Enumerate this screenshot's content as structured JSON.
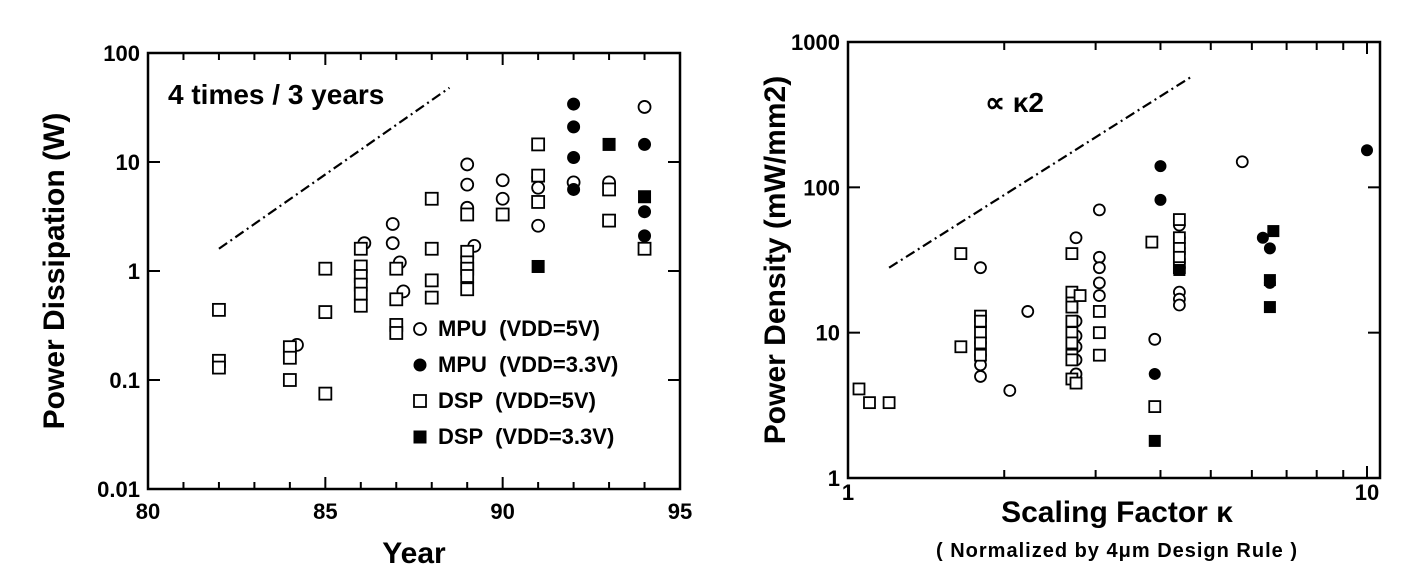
{
  "chart_data": [
    {
      "type": "scatter",
      "xlabel": "Year",
      "ylabel": "Power Dissipation (W)",
      "xlim": [
        80,
        95
      ],
      "ylim": [
        0.01,
        100
      ],
      "yscale": "log",
      "x_ticks": [
        "80",
        "85",
        "90",
        "95"
      ],
      "y_ticks": [
        "0.01",
        "0.1",
        "1",
        "10",
        "100"
      ],
      "annotation": "4 times / 3 years",
      "trend_line": {
        "style": "dash-dot",
        "x": [
          82,
          88.5
        ],
        "y": [
          1.6,
          48
        ]
      },
      "legend_position": "bottom-right",
      "series": [
        {
          "name": "MPU  (VDD=5V)",
          "marker": "open-circle",
          "points": [
            [
              84.2,
              0.21
            ],
            [
              84,
              0.19
            ],
            [
              86.1,
              1.8
            ],
            [
              86.9,
              2.7
            ],
            [
              86.9,
              1.8
            ],
            [
              87.1,
              1.2
            ],
            [
              87.2,
              0.65
            ],
            [
              89,
              9.5
            ],
            [
              89,
              6.2
            ],
            [
              89,
              3.8
            ],
            [
              89.2,
              1.7
            ],
            [
              90,
              6.8
            ],
            [
              90,
              4.6
            ],
            [
              91,
              7.2
            ],
            [
              91,
              5.8
            ],
            [
              91,
              2.6
            ],
            [
              92,
              6.5
            ],
            [
              93,
              6.5
            ],
            [
              94,
              32
            ]
          ]
        },
        {
          "name": "MPU  (VDD=3.3V)",
          "marker": "filled-circle",
          "points": [
            [
              92,
              34
            ],
            [
              92,
              21
            ],
            [
              92,
              11
            ],
            [
              92,
              5.6
            ],
            [
              94,
              14.5
            ],
            [
              94,
              3.5
            ],
            [
              94,
              2.1
            ]
          ]
        },
        {
          "name": "DSP  (VDD=5V)",
          "marker": "open-square",
          "points": [
            [
              82,
              0.44
            ],
            [
              82,
              0.15
            ],
            [
              82,
              0.13
            ],
            [
              84,
              0.2
            ],
            [
              84,
              0.16
            ],
            [
              84,
              0.1
            ],
            [
              85,
              1.05
            ],
            [
              85,
              0.42
            ],
            [
              85,
              0.075
            ],
            [
              86,
              1.6
            ],
            [
              86,
              1.1
            ],
            [
              86,
              0.9
            ],
            [
              86,
              0.75
            ],
            [
              86,
              0.62
            ],
            [
              86,
              0.48
            ],
            [
              87,
              1.05
            ],
            [
              87,
              0.55
            ],
            [
              87,
              0.32
            ],
            [
              87,
              0.27
            ],
            [
              88,
              4.6
            ],
            [
              88,
              1.6
            ],
            [
              88,
              0.82
            ],
            [
              88,
              0.57
            ],
            [
              89,
              3.3
            ],
            [
              89,
              1.5
            ],
            [
              89,
              1.2
            ],
            [
              89,
              1.05
            ],
            [
              89,
              0.9
            ],
            [
              89,
              0.68
            ],
            [
              90,
              3.3
            ],
            [
              91,
              14.5
            ],
            [
              91,
              7.5
            ],
            [
              91,
              4.3
            ],
            [
              93,
              5.6
            ],
            [
              93,
              2.9
            ],
            [
              94,
              1.6
            ]
          ]
        },
        {
          "name": "DSP  (VDD=3.3V)",
          "marker": "filled-square",
          "points": [
            [
              91,
              1.1
            ],
            [
              93,
              14.5
            ],
            [
              94,
              4.8
            ]
          ]
        }
      ]
    },
    {
      "type": "scatter",
      "xlabel": "Scaling Factor κ",
      "xlabel_note": "( Normalized by 4μm Design Rule )",
      "ylabel": "Power Density (mW/mm2)",
      "xlim": [
        1,
        10
      ],
      "ylim": [
        1,
        1000
      ],
      "xscale": "log",
      "yscale": "log",
      "x_ticks": [
        "1",
        "10"
      ],
      "y_ticks": [
        "1",
        "10",
        "100",
        "1000"
      ],
      "annotation": "∝ κ2",
      "trend_line": {
        "style": "dash-dot",
        "x": [
          1.2,
          4.6
        ],
        "y": [
          28,
          580
        ]
      },
      "series": [
        {
          "name": "MPU (VDD=5V)",
          "marker": "open-circle",
          "points": [
            [
              1.8,
              28
            ],
            [
              1.8,
              11
            ],
            [
              1.8,
              8.5
            ],
            [
              1.8,
              7
            ],
            [
              1.8,
              6
            ],
            [
              1.8,
              5
            ],
            [
              2.05,
              4
            ],
            [
              2.22,
              14
            ],
            [
              2.75,
              45
            ],
            [
              2.75,
              18
            ],
            [
              2.75,
              12
            ],
            [
              2.75,
              9.5
            ],
            [
              2.75,
              8
            ],
            [
              2.75,
              6.5
            ],
            [
              2.75,
              5.2
            ],
            [
              3.05,
              70
            ],
            [
              3.05,
              33
            ],
            [
              3.05,
              28
            ],
            [
              3.05,
              22
            ],
            [
              3.05,
              18
            ],
            [
              3.9,
              9
            ],
            [
              4.35,
              55
            ],
            [
              4.35,
              45
            ],
            [
              4.35,
              38
            ],
            [
              4.35,
              32
            ],
            [
              4.35,
              28
            ],
            [
              4.35,
              19
            ],
            [
              4.35,
              17
            ],
            [
              4.35,
              15.5
            ],
            [
              5.75,
              150
            ]
          ]
        },
        {
          "name": "MPU (VDD=3.3V)",
          "marker": "filled-circle",
          "points": [
            [
              3.9,
              5.2
            ],
            [
              4.0,
              140
            ],
            [
              4.0,
              82
            ],
            [
              6.3,
              45
            ],
            [
              6.5,
              38
            ],
            [
              6.5,
              22
            ],
            [
              10,
              180
            ]
          ]
        },
        {
          "name": "DSP (VDD=5V)",
          "marker": "open-square",
          "points": [
            [
              1.05,
              4.1
            ],
            [
              1.1,
              3.3
            ],
            [
              1.2,
              3.3
            ],
            [
              1.65,
              35
            ],
            [
              1.65,
              8
            ],
            [
              1.8,
              13
            ],
            [
              1.8,
              12
            ],
            [
              1.8,
              10
            ],
            [
              1.8,
              8.5
            ],
            [
              1.8,
              7
            ],
            [
              2.7,
              35
            ],
            [
              2.7,
              19
            ],
            [
              2.7,
              16
            ],
            [
              2.7,
              15
            ],
            [
              2.7,
              12
            ],
            [
              2.7,
              10
            ],
            [
              2.7,
              8.5
            ],
            [
              2.7,
              7
            ],
            [
              2.7,
              6.5
            ],
            [
              2.7,
              4.8
            ],
            [
              2.75,
              4.5
            ],
            [
              2.8,
              18
            ],
            [
              3.05,
              14
            ],
            [
              3.05,
              10
            ],
            [
              3.05,
              7
            ],
            [
              3.85,
              42
            ],
            [
              3.9,
              3.1
            ],
            [
              4.35,
              60
            ],
            [
              4.35,
              45
            ],
            [
              4.35,
              38
            ],
            [
              4.35,
              33
            ],
            [
              4.35,
              28
            ]
          ]
        },
        {
          "name": "DSP (VDD=3.3V)",
          "marker": "filled-square",
          "points": [
            [
              3.9,
              1.8
            ],
            [
              4.35,
              27
            ],
            [
              6.6,
              50
            ],
            [
              6.5,
              23
            ],
            [
              6.5,
              15
            ]
          ]
        }
      ]
    }
  ]
}
